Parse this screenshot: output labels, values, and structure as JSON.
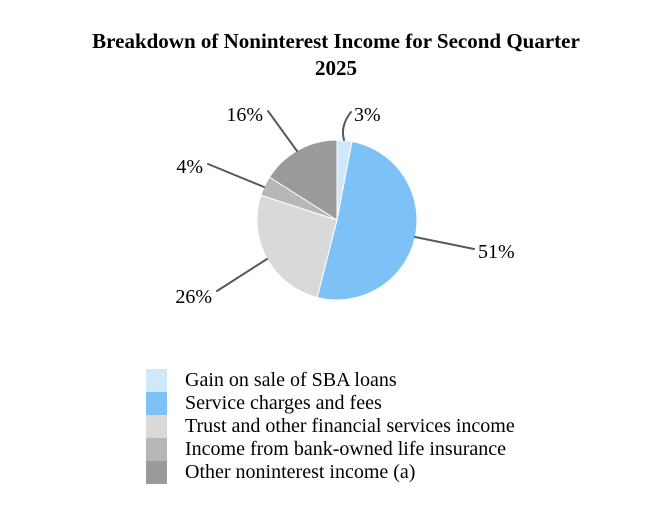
{
  "title": {
    "line1": "Breakdown of Noninterest Income for Second Quarter",
    "line2": "2025"
  },
  "chart_data": {
    "type": "pie",
    "title": "Breakdown of Noninterest Income for Second Quarter 2025",
    "start_angle_deg": 0,
    "direction": "clockwise",
    "legend_position": "bottom-left",
    "leader_line_color": "#595959",
    "slices": [
      {
        "label": "Gain on sale of SBA loans",
        "value": 3,
        "pct_label": "3%",
        "color": "#cfe9fa"
      },
      {
        "label": "Service charges and fees",
        "value": 51,
        "pct_label": "51%",
        "color": "#7dc2f7"
      },
      {
        "label": "Trust and other financial services income",
        "value": 26,
        "pct_label": "26%",
        "color": "#d9d9d9"
      },
      {
        "label": "Income from bank-owned life insurance",
        "value": 4,
        "pct_label": "4%",
        "color": "#b7b7b7"
      },
      {
        "label": "Other noninterest income (a)",
        "value": 16,
        "pct_label": "16%",
        "color": "#9a9a9a"
      }
    ]
  }
}
